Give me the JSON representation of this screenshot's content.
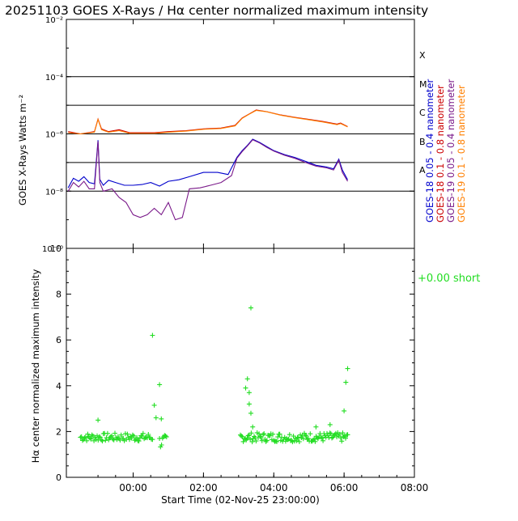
{
  "title": "20251103 GOES X-Rays / Hα center normalized maximum intensity",
  "chart_data": [
    {
      "type": "line",
      "panel": "goes-xray",
      "ylabel": "GOES X-Rays Watts m⁻²",
      "yscale": "log",
      "ylim": [
        1e-10,
        0.01
      ],
      "ytick_labels": [
        {
          "value": 0.01,
          "label": "10⁻²"
        },
        {
          "value": 0.0001,
          "label": "10⁻⁴"
        },
        {
          "value": 1e-06,
          "label": "10⁻⁶"
        },
        {
          "value": 1e-08,
          "label": "10⁻⁸"
        },
        {
          "value": 1e-10,
          "label": "10⁻¹⁰"
        }
      ],
      "flare_levels": [
        {
          "value": 0.0001,
          "class": "X"
        },
        {
          "value": 1e-05,
          "class": "M"
        },
        {
          "value": 1e-06,
          "class": "C"
        },
        {
          "value": 1e-07,
          "class": "B"
        },
        {
          "value": 1e-08,
          "class": "A"
        }
      ],
      "flare_class_labels": [
        "X",
        "M",
        "C",
        "B",
        "A"
      ],
      "xlim_hours": [
        -0.9,
        9.0
      ],
      "legend": [
        {
          "name": "GOES-18 0.05 - 0.4 nanometer",
          "color": "#0000cc"
        },
        {
          "name": "GOES-18 0.1 - 0.8 nanometer",
          "color": "#cc0000"
        },
        {
          "name": "GOES-19 0.05 - 0.4 nanometer",
          "color": "#7a1a8a"
        },
        {
          "name": "GOES-19 0.1 - 0.8 nanometer",
          "color": "#ff7f00"
        }
      ],
      "series": [
        {
          "name": "GOES-18 0.05 - 0.4 nanometer",
          "color": "#0000cc",
          "x": [
            -0.85,
            -0.7,
            -0.55,
            -0.4,
            -0.25,
            -0.1,
            0.0,
            0.05,
            0.15,
            0.3,
            0.5,
            0.75,
            1.0,
            1.25,
            1.5,
            1.75,
            2.0,
            2.3,
            2.6,
            3.0,
            3.4,
            3.7,
            3.95,
            4.1,
            4.25,
            4.4,
            4.6,
            4.8,
            5.0,
            5.3,
            5.6,
            5.9,
            6.2,
            6.5,
            6.7,
            6.85,
            6.95,
            7.1
          ],
          "y": [
            1.3e-08,
            2.8e-08,
            2.2e-08,
            3.2e-08,
            2e-08,
            1.8e-08,
            6e-07,
            2.6e-08,
            1.6e-08,
            2.4e-08,
            2e-08,
            1.6e-08,
            1.6e-08,
            1.7e-08,
            2e-08,
            1.5e-08,
            2.2e-08,
            2.5e-08,
            3.2e-08,
            4.5e-08,
            4.5e-08,
            3.8e-08,
            1.5e-07,
            2.6e-07,
            4e-07,
            6.5e-07,
            5e-07,
            3.6e-07,
            2.6e-07,
            1.9e-07,
            1.5e-07,
            1.1e-07,
            8e-08,
            7e-08,
            6e-08,
            1.3e-07,
            5.5e-08,
            2.5e-08
          ]
        },
        {
          "name": "GOES-19 0.05 - 0.4 nanometer",
          "color": "#7a1a8a",
          "x": [
            -0.85,
            -0.7,
            -0.55,
            -0.4,
            -0.25,
            -0.1,
            0.0,
            0.05,
            0.15,
            0.4,
            0.6,
            0.8,
            1.0,
            1.2,
            1.4,
            1.6,
            1.8,
            2.0,
            2.2,
            2.4,
            2.6,
            2.9,
            3.2,
            3.5,
            3.8,
            3.95,
            4.1,
            4.25,
            4.4,
            4.6,
            4.8,
            5.0,
            5.3,
            5.6,
            5.9,
            6.2,
            6.5,
            6.7,
            6.85,
            6.95,
            7.1
          ],
          "y": [
            1e-08,
            2e-08,
            1.4e-08,
            2.2e-08,
            1.2e-08,
            1.2e-08,
            5.5e-07,
            2e-08,
            1e-08,
            1.2e-08,
            6e-09,
            4e-09,
            1.5e-09,
            1.2e-09,
            1.5e-09,
            2.5e-09,
            1.5e-09,
            4e-09,
            1e-09,
            1.2e-09,
            1.2e-08,
            1.3e-08,
            1.6e-08,
            2e-08,
            3.5e-08,
            1.4e-07,
            2.4e-07,
            3.8e-07,
            6.2e-07,
            4.8e-07,
            3.4e-07,
            2.5e-07,
            1.8e-07,
            1.4e-07,
            1e-07,
            7.5e-08,
            6.5e-08,
            5.5e-08,
            1.2e-07,
            4.5e-08,
            2.2e-08
          ]
        },
        {
          "name": "GOES-18 0.1 - 0.8 nanometer",
          "color": "#cc0000",
          "x": [
            -0.85,
            -0.5,
            -0.1,
            0.0,
            0.1,
            0.3,
            0.6,
            0.9,
            1.2,
            1.6,
            2.0,
            2.5,
            3.0,
            3.5,
            3.9,
            4.1,
            4.3,
            4.5,
            4.8,
            5.2,
            5.6,
            6.0,
            6.4,
            6.8,
            6.9,
            7.1
          ],
          "y": [
            1.2e-06,
            1e-06,
            1.2e-06,
            3.3e-06,
            1.5e-06,
            1.2e-06,
            1.4e-06,
            1.1e-06,
            1.1e-06,
            1.1e-06,
            1.2e-06,
            1.3e-06,
            1.5e-06,
            1.6e-06,
            2e-06,
            3.6e-06,
            5e-06,
            6.8e-06,
            6e-06,
            4.6e-06,
            3.8e-06,
            3.2e-06,
            2.7e-06,
            2.2e-06,
            2.4e-06,
            1.8e-06
          ]
        },
        {
          "name": "GOES-19 0.1 - 0.8 nanometer",
          "color": "#ff7f00",
          "x": [
            -0.85,
            -0.5,
            -0.1,
            0.0,
            0.1,
            0.3,
            0.6,
            0.9,
            1.2,
            1.6,
            2.0,
            2.5,
            3.0,
            3.5,
            3.9,
            4.1,
            4.3,
            4.5,
            4.8,
            5.2,
            5.6,
            6.0,
            6.4,
            6.8,
            6.9,
            7.1
          ],
          "y": [
            1.1e-06,
            1e-06,
            1.15e-06,
            3.2e-06,
            1.4e-06,
            1.15e-06,
            1.3e-06,
            1.05e-06,
            1.05e-06,
            1.05e-06,
            1.15e-06,
            1.25e-06,
            1.45e-06,
            1.55e-06,
            1.9e-06,
            3.5e-06,
            4.9e-06,
            6.6e-06,
            5.9e-06,
            4.5e-06,
            3.7e-06,
            3.1e-06,
            2.6e-06,
            2.1e-06,
            2.3e-06,
            1.75e-06
          ]
        }
      ]
    },
    {
      "type": "scatter",
      "panel": "halpha",
      "ylabel": "Hα center normalized maximum intensity",
      "ylim": [
        0,
        10
      ],
      "yticks": [
        0,
        2,
        4,
        6,
        8,
        10
      ],
      "xlabel": "Start Time (02-Nov-25 23:00:00)",
      "xticks": [
        {
          "value": 1,
          "label": "00:00"
        },
        {
          "value": 3,
          "label": "02:00"
        },
        {
          "value": 5,
          "label": "04:00"
        },
        {
          "value": 7,
          "label": "06:00"
        },
        {
          "value": 9,
          "label": "08:00"
        }
      ],
      "xlim_hours": [
        -0.9,
        9.0
      ],
      "legend": {
        "marker": "+",
        "text": "+0.00 short",
        "color": "#22dd22"
      },
      "marker_color": "#22dd22",
      "outliers": [
        {
          "x": 0.0,
          "y": 2.5
        },
        {
          "x": 1.55,
          "y": 6.2
        },
        {
          "x": 1.6,
          "y": 3.15
        },
        {
          "x": 1.65,
          "y": 2.6
        },
        {
          "x": 1.75,
          "y": 4.05
        },
        {
          "x": 1.8,
          "y": 2.55
        },
        {
          "x": 4.2,
          "y": 3.9
        },
        {
          "x": 4.25,
          "y": 4.3
        },
        {
          "x": 4.3,
          "y": 3.7
        },
        {
          "x": 4.3,
          "y": 3.2
        },
        {
          "x": 4.35,
          "y": 7.4
        },
        {
          "x": 4.35,
          "y": 2.8
        },
        {
          "x": 4.4,
          "y": 2.2
        },
        {
          "x": 6.2,
          "y": 2.2
        },
        {
          "x": 6.6,
          "y": 2.3
        },
        {
          "x": 7.0,
          "y": 2.9
        },
        {
          "x": 7.05,
          "y": 4.15
        },
        {
          "x": 7.1,
          "y": 4.75
        }
      ],
      "segments": [
        {
          "x_start": -0.5,
          "x_end": 1.55,
          "count": 70,
          "y_mean": 1.75,
          "y_spread": 0.18
        },
        {
          "x_start": 1.75,
          "x_end": 1.95,
          "count": 8,
          "y_mean": 1.55,
          "y_spread": 0.3
        },
        {
          "x_start": 4.05,
          "x_end": 7.1,
          "count": 110,
          "y_mean": 1.75,
          "y_spread": 0.2
        }
      ]
    }
  ]
}
